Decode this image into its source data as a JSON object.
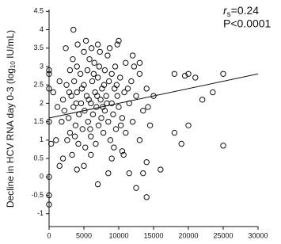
{
  "chart_data": {
    "type": "scatter",
    "y_label": {
      "before": "Decline in HCV RNA day 0-3 (log",
      "sub": "10",
      "after": " IU/mL)"
    },
    "annotation": {
      "r": "r",
      "sub": "s",
      "value": "=0.24",
      "p": "P<0.0001"
    },
    "xlim": [
      0,
      30000
    ],
    "xticks": [
      0,
      5000,
      10000,
      15000,
      20000,
      25000,
      30000
    ],
    "ylim": [
      -1.35,
      4.55
    ],
    "yticks": [
      -1,
      -0.5,
      0,
      0.5,
      1,
      1.5,
      2,
      2.5,
      3,
      3.5,
      4,
      4.5
    ],
    "series": [
      {
        "color": "#111111",
        "x": [
          3500,
          10000,
          9800,
          7000,
          12000,
          13000,
          18000,
          19500,
          20000,
          21000,
          23500,
          25000,
          20000,
          22000,
          18000,
          16000,
          19000,
          25000,
          14000,
          7000,
          11500,
          12500,
          13500,
          14000,
          10500,
          0,
          0,
          0,
          300,
          0,
          0,
          600,
          0,
          0,
          1500,
          2000,
          1000,
          4000,
          5000,
          8500,
          9000,
          6000,
          2000,
          2200,
          2500,
          2800,
          3000,
          3000,
          3200,
          3400,
          3500,
          3600,
          3800,
          4000,
          4000,
          4200,
          4300,
          4500,
          4600,
          4800,
          5000,
          5000,
          5100,
          5200,
          5400,
          5500,
          5600,
          5800,
          6000,
          6000,
          6200,
          6300,
          6500,
          6600,
          6700,
          6800,
          7000,
          7100,
          7200,
          7400,
          7500,
          7600,
          7800,
          8000,
          8000,
          8200,
          8400,
          8500,
          8600,
          8800,
          9000,
          9000,
          9200,
          9400,
          9500,
          9600,
          9800,
          10000,
          10200,
          10500,
          10800,
          11000,
          11000,
          11500,
          11800,
          12000,
          12500,
          13000,
          13000,
          13500,
          14000,
          14500,
          2600,
          3300,
          1800,
          1500,
          1200,
          2400,
          4100,
          5300,
          6100,
          7300,
          8700,
          9300,
          10700,
          3900,
          4700,
          5700,
          6900,
          7700,
          8300,
          9700,
          2900,
          3700,
          5900,
          6400,
          7900,
          10300,
          11300,
          12200,
          15000,
          14200
        ],
        "y": [
          4.0,
          3.7,
          3.6,
          3.6,
          3.3,
          3.1,
          2.8,
          2.75,
          2.8,
          2.7,
          2.3,
          2.8,
          1.4,
          2.1,
          1.2,
          0.2,
          0.9,
          0.85,
          -0.55,
          -0.2,
          0.1,
          -0.3,
          0.1,
          0.4,
          0.7,
          -0.75,
          -0.5,
          0.0,
          0.9,
          1.5,
          2.4,
          2.3,
          2.9,
          2.8,
          0.3,
          0.5,
          1.0,
          0.2,
          0.3,
          0.1,
          0.5,
          0.6,
          2.1,
          1.8,
          2.5,
          1.6,
          2.9,
          1.2,
          2.2,
          3.2,
          1.9,
          2.6,
          1.4,
          2.3,
          3.0,
          0.9,
          1.7,
          2.8,
          2.0,
          1.3,
          2.5,
          3.4,
          1.8,
          0.8,
          2.2,
          2.9,
          1.5,
          3.2,
          2.0,
          1.1,
          2.6,
          1.7,
          3.1,
          2.3,
          0.9,
          1.9,
          2.7,
          1.4,
          3.0,
          2.1,
          1.6,
          2.4,
          1.2,
          2.9,
          1.8,
          2.2,
          3.3,
          1.5,
          2.6,
          1.0,
          2.0,
          2.8,
          1.7,
          2.4,
          3.0,
          1.3,
          2.2,
          1.9,
          2.7,
          1.6,
          2.3,
          3.1,
          1.2,
          2.0,
          2.6,
          1.5,
          2.2,
          2.8,
          1.0,
          1.8,
          2.4,
          1.4,
          1.0,
          0.6,
          1.5,
          2.6,
          1.9,
          3.5,
          3.6,
          3.7,
          3.5,
          3.4,
          3.5,
          0.8,
          0.6,
          2.0,
          2.4,
          2.1,
          2.2,
          1.9,
          2.0,
          2.5,
          2.3,
          1.1,
          1.3,
          2.8,
          2.5,
          1.4,
          2.4,
          3.0,
          2.2,
          1.9
        ]
      }
    ],
    "trend_line": {
      "x": [
        0,
        30000
      ],
      "y": [
        1.6,
        2.8
      ]
    }
  }
}
